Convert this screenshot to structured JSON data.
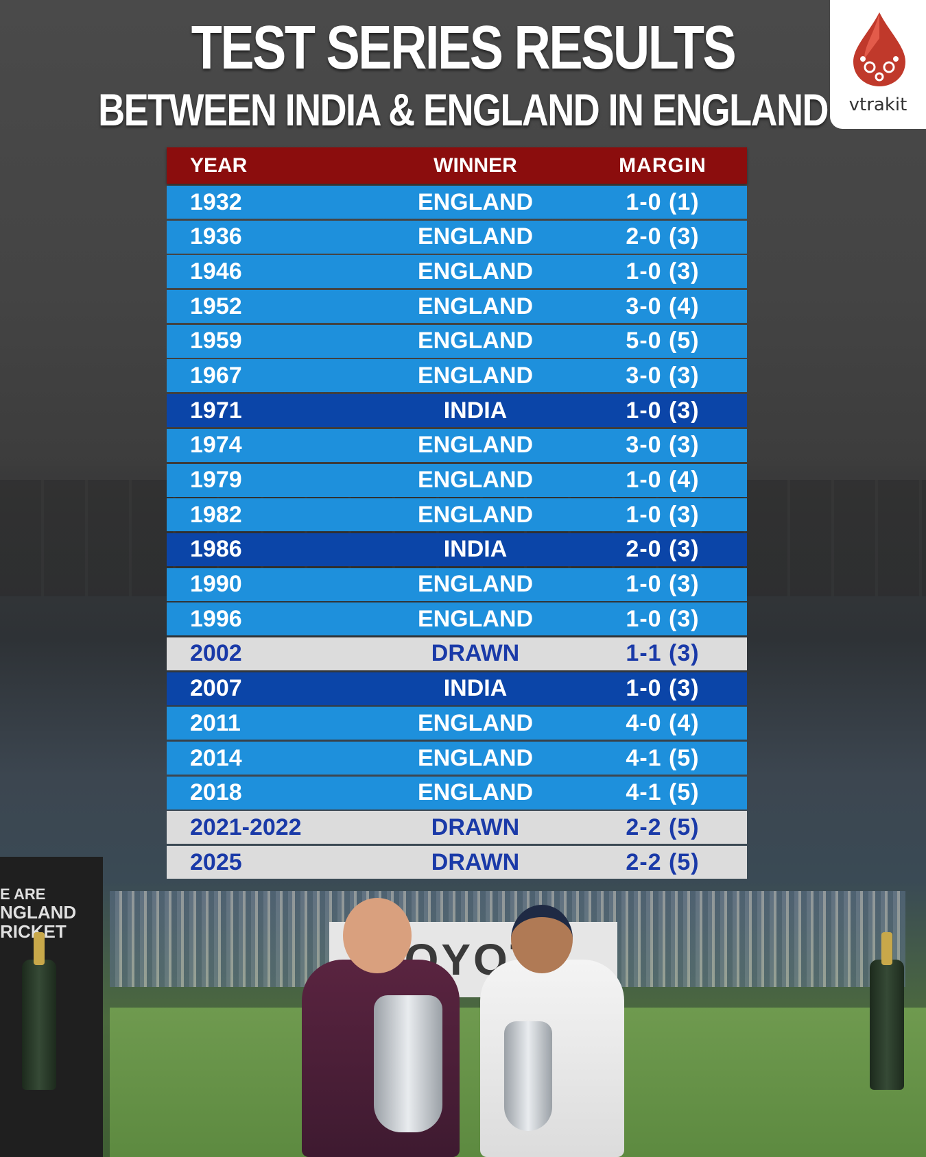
{
  "title": "TEST SERIES RESULTS",
  "subtitle": "BETWEEN INDIA & ENGLAND IN ENGLAND",
  "brand": {
    "name": "vtrakit",
    "color": "#c0392b"
  },
  "table": {
    "headers": {
      "year": "YEAR",
      "winner": "WINNER",
      "margin": "MARGIN"
    },
    "rows": [
      {
        "year": "1932",
        "winner": "ENGLAND",
        "margin": "1-0 (1)"
      },
      {
        "year": "1936",
        "winner": "ENGLAND",
        "margin": "2-0 (3)"
      },
      {
        "year": "1946",
        "winner": "ENGLAND",
        "margin": "1-0 (3)"
      },
      {
        "year": "1952",
        "winner": "ENGLAND",
        "margin": "3-0 (4)"
      },
      {
        "year": "1959",
        "winner": "ENGLAND",
        "margin": "5-0 (5)"
      },
      {
        "year": "1967",
        "winner": "ENGLAND",
        "margin": "3-0 (3)"
      },
      {
        "year": "1971",
        "winner": "INDIA",
        "margin": "1-0 (3)"
      },
      {
        "year": "1974",
        "winner": "ENGLAND",
        "margin": "3-0 (3)"
      },
      {
        "year": "1979",
        "winner": "ENGLAND",
        "margin": "1-0 (4)"
      },
      {
        "year": "1982",
        "winner": "ENGLAND",
        "margin": "1-0 (3)"
      },
      {
        "year": "1986",
        "winner": "INDIA",
        "margin": "2-0 (3)"
      },
      {
        "year": "1990",
        "winner": "ENGLAND",
        "margin": "1-0 (3)"
      },
      {
        "year": "1996",
        "winner": "ENGLAND",
        "margin": "1-0 (3)"
      },
      {
        "year": "2002",
        "winner": "DRAWN",
        "margin": "1-1 (3)"
      },
      {
        "year": "2007",
        "winner": "INDIA",
        "margin": "1-0 (3)"
      },
      {
        "year": "2011",
        "winner": "ENGLAND",
        "margin": "4-0 (4)"
      },
      {
        "year": "2014",
        "winner": "ENGLAND",
        "margin": "4-1 (5)"
      },
      {
        "year": "2018",
        "winner": "ENGLAND",
        "margin": "4-1 (5)"
      },
      {
        "year": "2021-2022",
        "winner": "DRAWN",
        "margin": "2-2 (5)"
      },
      {
        "year": "2025",
        "winner": "DRAWN",
        "margin": "2-2 (5)"
      }
    ]
  },
  "colors": {
    "header_bg": "#8b0d0d",
    "england_row": "#1e90dc",
    "india_row": "#0b45a8",
    "drawn_row": "#dcdcdc",
    "drawn_text": "#1a3aa8"
  },
  "background_text": {
    "board_left": [
      "E ARE",
      "NGLAND",
      "RICKET"
    ],
    "sponsor": "TOYOTA"
  }
}
